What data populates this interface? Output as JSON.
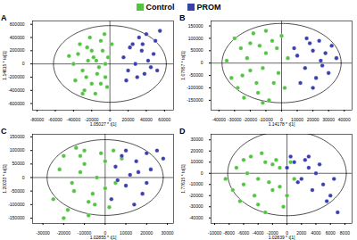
{
  "chart_data": [
    {
      "type": "scatter",
      "title": "A",
      "legend": "top",
      "x_label": "1.05027 * t[1]",
      "y_label": "1.14615 * to[1]",
      "xlim": [
        -85000,
        70000
      ],
      "ylim": [
        -700000,
        650000
      ],
      "xticks": [
        -80000,
        -60000,
        -40000,
        -20000,
        0,
        20000,
        40000,
        60000
      ],
      "yticks": [
        -600000,
        -400000,
        -200000,
        0,
        200000,
        400000,
        600000
      ],
      "ellipse": [
        62000,
        580000
      ],
      "series": [
        {
          "name": "Control",
          "color": "#52c441",
          "values": [
            [
              -35000,
              150000
            ],
            [
              -30000,
              -100000
            ],
            [
              -25000,
              250000
            ],
            [
              -20000,
              -300000
            ],
            [
              -15000,
              50000
            ],
            [
              -10000,
              350000
            ],
            [
              -5000,
              -200000
            ],
            [
              -28000,
              -400000
            ],
            [
              -22000,
              400000
            ],
            [
              -18000,
              100000
            ],
            [
              -12000,
              -50000
            ],
            [
              -8000,
              200000
            ],
            [
              -3000,
              -350000
            ],
            [
              -40000,
              0
            ],
            [
              -33000,
              300000
            ],
            [
              -26000,
              -200000
            ],
            [
              -16000,
              -450000
            ],
            [
              -6000,
              450000
            ],
            [
              -2000,
              100000
            ],
            [
              -14000,
              -150000
            ],
            [
              -24000,
              50000
            ],
            [
              -38000,
              -250000
            ],
            [
              -10000,
              -300000
            ],
            [
              2000,
              300000
            ],
            [
              -20000,
              200000
            ],
            [
              -30000,
              -450000
            ],
            [
              -45000,
              120000
            ],
            [
              -5000,
              0
            ]
          ]
        },
        {
          "name": "PROM",
          "color": "#3a3fae",
          "values": [
            [
              15000,
              100000
            ],
            [
              20000,
              -100000
            ],
            [
              25000,
              300000
            ],
            [
              30000,
              -200000
            ],
            [
              35000,
              200000
            ],
            [
              40000,
              450000
            ],
            [
              45000,
              -50000
            ],
            [
              50000,
              350000
            ],
            [
              55000,
              500000
            ],
            [
              28000,
              0
            ],
            [
              38000,
              -150000
            ],
            [
              22000,
              250000
            ],
            [
              48000,
              150000
            ],
            [
              32000,
              400000
            ],
            [
              42000,
              50000
            ],
            [
              18000,
              -250000
            ],
            [
              52000,
              -100000
            ],
            [
              36000,
              300000
            ]
          ]
        }
      ]
    },
    {
      "type": "scatter",
      "title": "B",
      "legend": "top",
      "x_label": "1.14178 * t[1]",
      "y_label": "1.07957 * to[1]",
      "xlim": [
        -45000,
        45000
      ],
      "ylim": [
        -190000,
        170000
      ],
      "xticks": [
        -40000,
        -30000,
        -20000,
        -10000,
        0,
        10000,
        20000,
        30000,
        40000
      ],
      "yticks": [
        -150000,
        -100000,
        -50000,
        0,
        50000,
        100000,
        150000
      ],
      "ellipse": [
        38000,
        160000
      ],
      "series": [
        {
          "name": "Control",
          "color": "#52c441",
          "values": [
            [
              -30000,
              100000
            ],
            [
              -25000,
              -50000
            ],
            [
              -20000,
              80000
            ],
            [
              -15000,
              -120000
            ],
            [
              -10000,
              40000
            ],
            [
              -5000,
              -80000
            ],
            [
              0,
              110000
            ],
            [
              -28000,
              -100000
            ],
            [
              -22000,
              20000
            ],
            [
              -18000,
              120000
            ],
            [
              -12000,
              -20000
            ],
            [
              -8000,
              -150000
            ],
            [
              -3000,
              60000
            ],
            [
              -35000,
              10000
            ],
            [
              -26000,
              60000
            ],
            [
              -16000,
              -80000
            ],
            [
              -6000,
              90000
            ],
            [
              -2000,
              -40000
            ],
            [
              -14000,
              70000
            ],
            [
              -24000,
              -140000
            ],
            [
              -32000,
              -60000
            ],
            [
              -10000,
              130000
            ],
            [
              2000,
              -100000
            ],
            [
              -20000,
              -30000
            ],
            [
              4000,
              20000
            ],
            [
              -12000,
              -160000
            ]
          ]
        },
        {
          "name": "PROM",
          "color": "#3a3fae",
          "values": [
            [
              10000,
              30000
            ],
            [
              15000,
              -20000
            ],
            [
              20000,
              50000
            ],
            [
              25000,
              10000
            ],
            [
              30000,
              -40000
            ],
            [
              18000,
              80000
            ],
            [
              22000,
              -60000
            ],
            [
              28000,
              40000
            ],
            [
              12000,
              -80000
            ],
            [
              35000,
              20000
            ],
            [
              16000,
              100000
            ],
            [
              26000,
              -10000
            ],
            [
              8000,
              60000
            ],
            [
              32000,
              70000
            ],
            [
              20000,
              -100000
            ],
            [
              24000,
              90000
            ]
          ]
        }
      ]
    },
    {
      "type": "scatter",
      "title": "C",
      "legend": "top",
      "x_label": "1.02855 * t[1]",
      "y_label": "1.20033 * to[1]",
      "xlim": [
        -35000,
        33000
      ],
      "ylim": [
        -170000,
        160000
      ],
      "xticks": [
        -30000,
        -20000,
        -10000,
        0,
        10000,
        20000,
        30000
      ],
      "yticks": [
        -150000,
        -100000,
        -50000,
        0,
        50000,
        100000,
        150000
      ],
      "ellipse": [
        28000,
        140000
      ],
      "series": [
        {
          "name": "Control",
          "color": "#52c441",
          "values": [
            [
              -20000,
              80000
            ],
            [
              -15000,
              -50000
            ],
            [
              -10000,
              100000
            ],
            [
              -5000,
              -100000
            ],
            [
              0,
              60000
            ],
            [
              5000,
              -20000
            ],
            [
              -18000,
              -120000
            ],
            [
              -12000,
              20000
            ],
            [
              -8000,
              -140000
            ],
            [
              -2000,
              90000
            ],
            [
              -22000,
              30000
            ],
            [
              -14000,
              110000
            ],
            [
              -6000,
              -60000
            ],
            [
              2000,
              -110000
            ],
            [
              -16000,
              -20000
            ],
            [
              -25000,
              -80000
            ],
            [
              -10000,
              50000
            ],
            [
              -4000,
              0
            ],
            [
              8000,
              70000
            ],
            [
              -20000,
              -150000
            ],
            [
              -8000,
              -90000
            ],
            [
              -12000,
              80000
            ],
            [
              0,
              -40000
            ],
            [
              4000,
              100000
            ]
          ]
        },
        {
          "name": "PROM",
          "color": "#3a3fae",
          "values": [
            [
              5000,
              40000
            ],
            [
              10000,
              -30000
            ],
            [
              15000,
              60000
            ],
            [
              20000,
              90000
            ],
            [
              25000,
              100000
            ],
            [
              8000,
              80000
            ],
            [
              12000,
              10000
            ],
            [
              18000,
              -60000
            ],
            [
              22000,
              30000
            ],
            [
              3000,
              -80000
            ],
            [
              14000,
              -100000
            ],
            [
              28000,
              70000
            ],
            [
              16000,
              20000
            ],
            [
              6000,
              -10000
            ],
            [
              20000,
              -20000
            ],
            [
              10000,
              100000
            ]
          ]
        }
      ]
    },
    {
      "type": "scatter",
      "title": "D",
      "legend": "top",
      "x_label": "1.02839 * t[1]",
      "y_label": "1.77615 * to[1]",
      "xlim": [
        -10500,
        9000
      ],
      "ylim": [
        -45000,
        35000
      ],
      "xticks": [
        -10000,
        -8000,
        -6000,
        -4000,
        -2000,
        0,
        2000,
        4000,
        6000,
        8000
      ],
      "yticks": [
        -40000,
        -30000,
        -20000,
        -10000,
        0,
        10000,
        20000,
        30000
      ],
      "ellipse": [
        8200,
        38000
      ],
      "series": [
        {
          "name": "Control",
          "color": "#52c441",
          "values": [
            [
              -7000,
              5000
            ],
            [
              -6000,
              -10000
            ],
            [
              -5000,
              15000
            ],
            [
              -4000,
              -5000
            ],
            [
              -3000,
              10000
            ],
            [
              -2000,
              -15000
            ],
            [
              -1000,
              5000
            ],
            [
              0,
              -20000
            ],
            [
              -6500,
              -25000
            ],
            [
              -5500,
              0
            ],
            [
              -4500,
              -20000
            ],
            [
              -3500,
              18000
            ],
            [
              -2500,
              -8000
            ],
            [
              -1500,
              12000
            ],
            [
              -500,
              -30000
            ],
            [
              1000,
              -5000
            ],
            [
              -7500,
              -15000
            ],
            [
              -3000,
              -35000
            ],
            [
              -2000,
              8000
            ],
            [
              -4000,
              -28000
            ],
            [
              500,
              10000
            ],
            [
              -1000,
              -12000
            ],
            [
              -8500,
              -5000
            ],
            [
              -6000,
              12000
            ]
          ]
        },
        {
          "name": "PROM",
          "color": "#3a3fae",
          "values": [
            [
              0,
              5000
            ],
            [
              1000,
              10000
            ],
            [
              2000,
              -5000
            ],
            [
              3000,
              15000
            ],
            [
              4000,
              0
            ],
            [
              5000,
              -10000
            ],
            [
              6000,
              -20000
            ],
            [
              7000,
              -35000
            ],
            [
              2500,
              12000
            ],
            [
              1500,
              -8000
            ],
            [
              3500,
              -15000
            ],
            [
              4500,
              8000
            ],
            [
              5500,
              -25000
            ],
            [
              500,
              15000
            ],
            [
              6500,
              -5000
            ],
            [
              3000,
              5000
            ]
          ]
        }
      ]
    }
  ]
}
